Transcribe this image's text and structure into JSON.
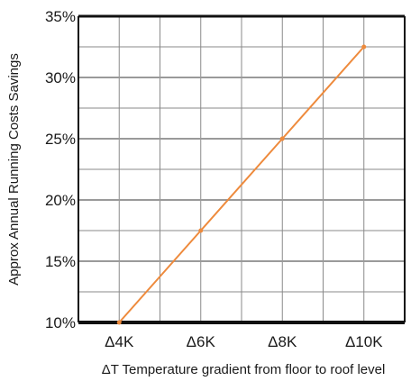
{
  "chart_data": {
    "type": "line",
    "xlabel": "ΔT Temperature gradient from floor to roof level",
    "ylabel": "Approx Annual Running Costs Savings",
    "x_categories": [
      "Δ4K",
      "Δ6K",
      "Δ8K",
      "Δ10K"
    ],
    "x_range": [
      3,
      11
    ],
    "ylim": [
      10,
      35
    ],
    "y_ticks": [
      10,
      15,
      20,
      25,
      30,
      35
    ],
    "y_tick_labels": [
      "10%",
      "15%",
      "20%",
      "25%",
      "30%",
      "35%"
    ],
    "grid": true,
    "series": [
      {
        "x": [
          4,
          6,
          8,
          10
        ],
        "values": [
          10,
          17.5,
          25,
          32.5
        ],
        "color": "#ee8a3c"
      }
    ]
  }
}
